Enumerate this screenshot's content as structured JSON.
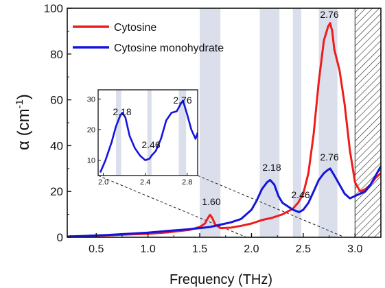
{
  "chart_data": {
    "type": "line",
    "xlabel": "Frequency (THz)",
    "ylabel": "α (cm",
    "ylabel_sup": "-1",
    "ylabel_close": ")",
    "xlim": [
      0.22,
      3.25
    ],
    "ylim": [
      0,
      100
    ],
    "x_ticks": [
      0.5,
      1.0,
      1.5,
      2.0,
      2.5,
      3.0
    ],
    "x_tick_labels": [
      "0.5",
      "1.0",
      "1.5",
      "2.0",
      "2.5",
      "3.0"
    ],
    "y_ticks": [
      0,
      20,
      40,
      60,
      80,
      100
    ],
    "y_tick_labels": [
      "0",
      "20",
      "40",
      "60",
      "80",
      "100"
    ],
    "legend_position": "top-left",
    "shaded_bands": [
      [
        1.5,
        1.7
      ],
      [
        2.08,
        2.27
      ],
      [
        2.4,
        2.48
      ],
      [
        2.65,
        2.83
      ]
    ],
    "hatched_region": [
      3.0,
      3.25
    ],
    "series": [
      {
        "name": "Cytosine",
        "color": "#ee1c1c",
        "x": [
          0.22,
          0.4,
          0.6,
          0.8,
          1.0,
          1.2,
          1.4,
          1.5,
          1.55,
          1.58,
          1.6,
          1.62,
          1.65,
          1.7,
          1.8,
          1.9,
          2.0,
          2.1,
          2.2,
          2.3,
          2.4,
          2.45,
          2.5,
          2.55,
          2.6,
          2.65,
          2.7,
          2.74,
          2.76,
          2.78,
          2.8,
          2.85,
          2.9,
          2.95,
          3.0,
          3.05,
          3.1,
          3.15,
          3.2,
          3.25
        ],
        "y": [
          0.3,
          0.5,
          0.8,
          1.2,
          1.5,
          2.2,
          3.2,
          4.5,
          6,
          8.5,
          9.8,
          8.5,
          5.5,
          4,
          4.2,
          5,
          6,
          7.5,
          8.5,
          10,
          12.5,
          15,
          19,
          28,
          45,
          68,
          86,
          92,
          93.5,
          90,
          82,
          73,
          58,
          38,
          24,
          20,
          21,
          23,
          26,
          28
        ]
      },
      {
        "name": "Cytosine monohydrate",
        "color": "#1414dc",
        "x": [
          0.22,
          0.4,
          0.6,
          0.8,
          1.0,
          1.2,
          1.4,
          1.6,
          1.7,
          1.8,
          1.9,
          2.0,
          2.05,
          2.1,
          2.15,
          2.18,
          2.22,
          2.26,
          2.3,
          2.35,
          2.4,
          2.46,
          2.5,
          2.55,
          2.6,
          2.65,
          2.7,
          2.74,
          2.76,
          2.8,
          2.85,
          2.9,
          2.95,
          3.0,
          3.05,
          3.1,
          3.15,
          3.2,
          3.25
        ],
        "y": [
          0.3,
          0.6,
          1,
          1.5,
          2,
          2.8,
          3.5,
          4.5,
          5.5,
          6.5,
          8,
          12,
          16,
          21,
          24,
          25,
          23,
          18,
          15,
          13.5,
          12,
          11,
          12,
          15,
          20,
          25,
          28,
          29.5,
          30,
          27,
          23,
          19,
          17,
          18,
          19,
          20,
          23,
          27,
          31
        ]
      }
    ],
    "annotations": [
      "1.60",
      "2.18",
      "2.46",
      "2.76",
      "2.76"
    ],
    "inset": {
      "xlim": [
        1.95,
        2.9
      ],
      "ylim": [
        5,
        33
      ],
      "x_ticks": [
        2.0,
        2.4,
        2.8
      ],
      "x_tick_labels": [
        "2.0",
        "2.4",
        "2.8"
      ],
      "y_ticks": [
        10,
        20,
        30
      ],
      "y_tick_labels": [
        "10",
        "20",
        "30"
      ],
      "shaded_bands": [
        [
          2.12,
          2.17
        ],
        [
          2.42,
          2.46
        ],
        [
          2.72,
          2.79
        ]
      ],
      "series": {
        "color": "#1414dc",
        "x": [
          1.97,
          2.02,
          2.08,
          2.12,
          2.16,
          2.18,
          2.21,
          2.25,
          2.3,
          2.35,
          2.4,
          2.44,
          2.46,
          2.5,
          2.55,
          2.6,
          2.65,
          2.7,
          2.74,
          2.76,
          2.8,
          2.84,
          2.88,
          2.9
        ],
        "y": [
          6,
          10,
          16,
          21,
          24.5,
          25.5,
          24,
          18,
          14,
          11.5,
          10,
          10.5,
          11.5,
          13,
          17,
          23,
          25.5,
          26,
          28.5,
          29.5,
          25,
          20,
          17,
          19
        ]
      },
      "annotations": [
        "2.18",
        "2.46",
        "2.76"
      ]
    }
  }
}
